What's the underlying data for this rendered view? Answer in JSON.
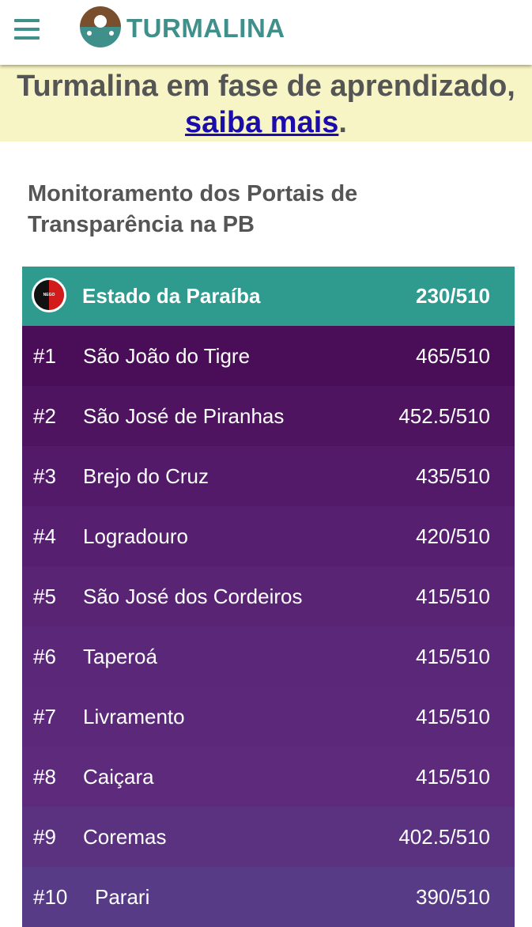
{
  "header": {
    "menu_icon": "hamburger-menu-icon",
    "logo_icon": "turmalina-logo-icon",
    "brand": "TURMALINA",
    "colors": {
      "brand": "#3f8f8a",
      "logo_top": "#7a4f2e",
      "logo_bottom": "#3f8f8a",
      "menu": "#3f8f8a"
    }
  },
  "banner": {
    "text": "Turmalina em fase de aprendizado,",
    "link": "saiba mais",
    "suffix": ".",
    "background": "#f7f5c5"
  },
  "section": {
    "title": "Monitoramento dos Portais de Transparência na PB"
  },
  "state": {
    "flag_icon": "paraiba-flag-icon",
    "flag_text": "NEGO",
    "name": "Estado da Paraíba",
    "score": "230/510",
    "color": "#2f9b8f"
  },
  "ranking": [
    {
      "rank": "#1",
      "name": "São João do Tigre",
      "score": "465/510",
      "color": "#4a0d57"
    },
    {
      "rank": "#2",
      "name": "São José de Piranhas",
      "score": "452.5/510",
      "color": "#4e1460"
    },
    {
      "rank": "#3",
      "name": "Brejo do Cruz",
      "score": "435/510",
      "color": "#521a69"
    },
    {
      "rank": "#4",
      "name": "Logradouro",
      "score": "420/510",
      "color": "#561f70"
    },
    {
      "rank": "#5",
      "name": "São José dos Cordeiros",
      "score": "415/510",
      "color": "#592474"
    },
    {
      "rank": "#6",
      "name": "Taperoá",
      "score": "415/510",
      "color": "#5b2778"
    },
    {
      "rank": "#7",
      "name": "Livramento",
      "score": "415/510",
      "color": "#5c297a"
    },
    {
      "rank": "#8",
      "name": "Caiçara",
      "score": "415/510",
      "color": "#5e2b7c"
    },
    {
      "rank": "#9",
      "name": "Coremas",
      "score": "402.5/510",
      "color": "#5b3280"
    },
    {
      "rank": "#10",
      "name": "Parari",
      "score": "390/510",
      "color": "#573b86"
    }
  ]
}
